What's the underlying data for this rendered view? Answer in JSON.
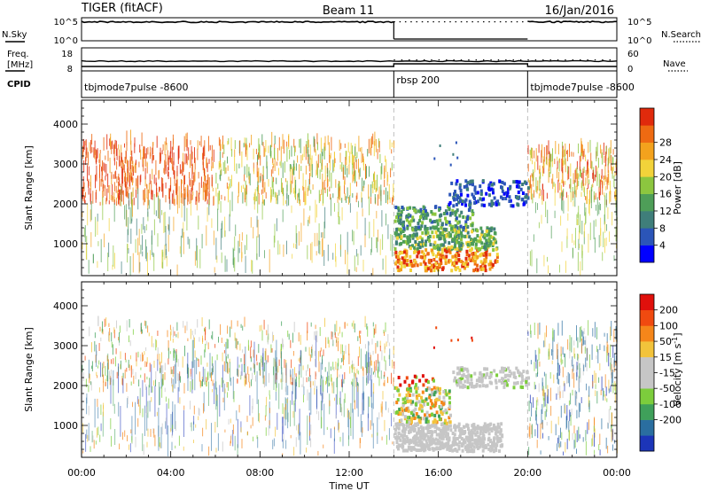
{
  "header": {
    "radar": "TIGER (fitACF)",
    "beam": "Beam 11",
    "date": "16/Jan/2016"
  },
  "nsky_panel": {
    "left_label": "N.Sky",
    "right_label": "N.Search",
    "left_ticks": [
      "10^5",
      "10^0"
    ],
    "right_ticks": [
      "10^5",
      "10^0"
    ]
  },
  "freq_panel": {
    "left_label_1": "Freq.",
    "left_label_2": "[MHz]",
    "right_label": "Nave",
    "left_ticks": [
      "18",
      "8"
    ],
    "right_ticks": [
      "60",
      "0"
    ]
  },
  "cpid_panel": {
    "label": "CPID",
    "segments": [
      {
        "name": "tbjmode7pulse -8600",
        "start_h": 0,
        "end_h": 14
      },
      {
        "name": "rbsp 200",
        "start_h": 14,
        "end_h": 20
      },
      {
        "name": "tbjmode7pulse -8600",
        "start_h": 20,
        "end_h": 24
      }
    ]
  },
  "colors": {
    "power": [
      "#0000ff",
      "#2b55b8",
      "#3f7e7a",
      "#4e9e58",
      "#8cc63f",
      "#f2d33a",
      "#f3a21d",
      "#ee6a12",
      "#e02a0c"
    ],
    "velocity": [
      "#e0100c",
      "#f04a10",
      "#f5861a",
      "#f2c33b",
      "#c6c6c6",
      "#c6c6c6",
      "#7ccd3c",
      "#3fa05a",
      "#2a6ea0",
      "#1c35b8"
    ]
  },
  "chart_data": [
    {
      "type": "heatmap",
      "panel": "power",
      "xlabel": "",
      "ylabel": "Slant Range [km]",
      "xlim_hours": [
        0,
        24
      ],
      "ylim_km": [
        200,
        4600
      ],
      "yticks": [
        "1000",
        "2000",
        "3000",
        "4000"
      ],
      "colorbar": {
        "label": "Power [dB]",
        "range": [
          0,
          32
        ],
        "ticks": [
          "4",
          "8",
          "12",
          "16",
          "20",
          "24",
          "28"
        ]
      },
      "scatter_regions": [
        {
          "t_start": 0,
          "t_end": 6,
          "r_min": 1950,
          "r_max": 3500,
          "dominant": "20-30 dB"
        },
        {
          "t_start": 6,
          "t_end": 14,
          "r_min": 1950,
          "r_max": 3500,
          "dominant": "12-24 dB"
        },
        {
          "t_start": 14,
          "t_end": 20,
          "r_min": 300,
          "r_max": 1800,
          "dominant": "8-28 dB"
        },
        {
          "t_start": 16.5,
          "t_end": 20,
          "r_min": 1900,
          "r_max": 2500,
          "dominant": "4-8 dB"
        },
        {
          "t_start": 20,
          "t_end": 24,
          "r_min": 1950,
          "r_max": 3300,
          "dominant": "16-28 dB"
        }
      ]
    },
    {
      "type": "heatmap",
      "panel": "velocity",
      "xlabel": "Time UT",
      "ylabel": "Slant Range [km]",
      "xlim_hours": [
        0,
        24
      ],
      "xticks": [
        "00:00",
        "04:00",
        "08:00",
        "12:00",
        "16:00",
        "20:00",
        "00:00"
      ],
      "ylim_km": [
        200,
        4600
      ],
      "yticks": [
        "1000",
        "2000",
        "3000",
        "4000"
      ],
      "colorbar": {
        "label": "Velocity [m s",
        "label_exp": "-1",
        "label_end": "]",
        "ticks": [
          "200",
          "100",
          "50",
          "15",
          "-15",
          "-50",
          "-100",
          "-200"
        ]
      }
    }
  ]
}
